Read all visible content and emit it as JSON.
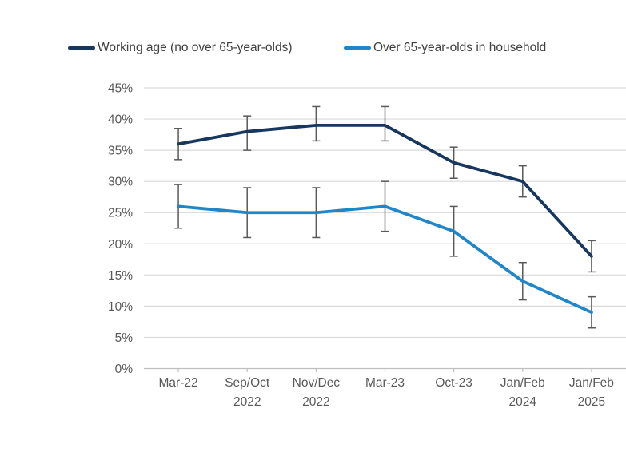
{
  "chart_data": {
    "type": "line",
    "categories": [
      "Mar-22",
      "Sep/Oct\n2022",
      "Nov/Dec\n2022",
      "Mar-23",
      "Oct-23",
      "Jan/Feb\n2024",
      "Jan/Feb\n2025"
    ],
    "series": [
      {
        "name": "Working age (no over 65-year-olds)",
        "color": "#17375E",
        "values": [
          36,
          38,
          39,
          39,
          33,
          30,
          18
        ],
        "error_low": [
          33.5,
          35,
          36.5,
          36.5,
          30.5,
          27.5,
          15.5
        ],
        "error_high": [
          38.5,
          40.5,
          42,
          42,
          35.5,
          32.5,
          20.5
        ]
      },
      {
        "name": "Over 65-year-olds in household",
        "color": "#1F87C9",
        "values": [
          26,
          25,
          25,
          26,
          22,
          14,
          9
        ],
        "error_low": [
          22.5,
          21,
          21,
          22,
          18,
          11,
          6.5
        ],
        "error_high": [
          29.5,
          29,
          29,
          30,
          26,
          17,
          11.5
        ]
      }
    ],
    "title": "",
    "xlabel": "",
    "ylabel": "",
    "ylim": [
      0,
      45
    ],
    "ytick_step": 5,
    "ytick_suffix": "%",
    "grid": true,
    "error_bars": true,
    "legend_position": "top"
  },
  "style": {
    "grid_color": "#D9D9D9",
    "axis_line_color": "#BFBFBF",
    "tick_label_color": "#595959",
    "legend_text_color": "#404040",
    "error_bar_color": "#595959"
  }
}
